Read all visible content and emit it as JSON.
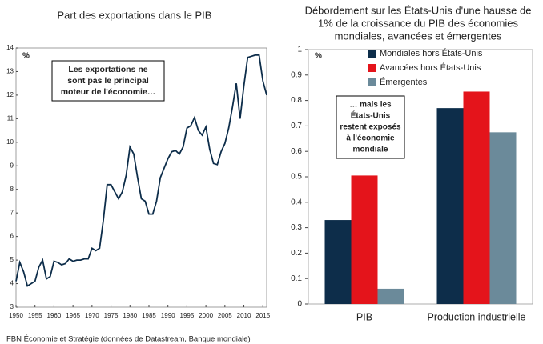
{
  "chart_data": [
    {
      "type": "line",
      "title": "Part des exportations dans le PIB",
      "y_unit": "%",
      "annotation": [
        "Les exportations ne",
        "sont pas le principal",
        "moteur de l'économie…"
      ],
      "x": [
        1950,
        1951,
        1952,
        1953,
        1954,
        1955,
        1956,
        1957,
        1958,
        1959,
        1960,
        1961,
        1962,
        1963,
        1964,
        1965,
        1966,
        1967,
        1968,
        1969,
        1970,
        1971,
        1972,
        1973,
        1974,
        1975,
        1976,
        1977,
        1978,
        1979,
        1980,
        1981,
        1982,
        1983,
        1984,
        1985,
        1986,
        1987,
        1988,
        1989,
        1990,
        1991,
        1992,
        1993,
        1994,
        1995,
        1996,
        1997,
        1998,
        1999,
        2000,
        2001,
        2002,
        2003,
        2004,
        2005,
        2006,
        2007,
        2008,
        2009,
        2010,
        2011,
        2012,
        2013,
        2014,
        2015,
        2016
      ],
      "series": [
        {
          "color": "#0d2d4a",
          "values": [
            4.1,
            4.9,
            4.5,
            3.9,
            4.0,
            4.1,
            4.7,
            5.0,
            4.2,
            4.3,
            4.95,
            4.9,
            4.8,
            4.85,
            5.05,
            4.95,
            5.0,
            5.0,
            5.05,
            5.05,
            5.5,
            5.4,
            5.5,
            6.7,
            8.2,
            8.2,
            7.9,
            7.6,
            7.9,
            8.6,
            9.8,
            9.5,
            8.5,
            7.6,
            7.5,
            6.95,
            6.95,
            7.5,
            8.5,
            8.9,
            9.3,
            9.6,
            9.65,
            9.5,
            9.8,
            10.6,
            10.7,
            11.05,
            10.5,
            10.3,
            10.65,
            9.7,
            9.1,
            9.05,
            9.6,
            9.95,
            10.6,
            11.5,
            12.5,
            11.0,
            12.4,
            13.6,
            13.65,
            13.7,
            13.7,
            12.6,
            12.0
          ]
        }
      ],
      "xlim": [
        1950,
        2016
      ],
      "xticks": [
        1950,
        1955,
        1960,
        1965,
        1970,
        1975,
        1980,
        1985,
        1990,
        1995,
        2000,
        2005,
        2010,
        2015
      ],
      "ylim": [
        3,
        14
      ],
      "yticks": [
        3,
        4,
        5,
        6,
        7,
        8,
        9,
        10,
        11,
        12,
        13,
        14
      ],
      "grid": false
    },
    {
      "type": "bar",
      "title": [
        "Débordement sur les États-Unis d'une hausse de",
        "1% de la croissance du PIB des économies",
        "mondiales, avancées et émergentes"
      ],
      "y_unit": "%",
      "annotation": [
        "… mais les",
        "États-Unis",
        "restent exposés",
        "à l'économie",
        "mondiale"
      ],
      "categories": [
        "PIB",
        "Production industrielle"
      ],
      "series": [
        {
          "name": "Mondiales hors États-Unis",
          "color": "#0d2d4a",
          "values": [
            0.33,
            0.77
          ]
        },
        {
          "name": "Avancées hors États-Unis",
          "color": "#e4141b",
          "values": [
            0.505,
            0.835
          ]
        },
        {
          "name": "Émergentes",
          "color": "#6b8a9a",
          "values": [
            0.06,
            0.675
          ]
        }
      ],
      "ylim": [
        0,
        1
      ],
      "yticks": [
        0,
        0.1,
        0.2,
        0.3,
        0.4,
        0.5,
        0.6,
        0.7,
        0.8,
        0.9,
        1
      ],
      "legend": "top",
      "grid": false
    }
  ],
  "source": "FBN Économie et Stratégie (données de Datastream, Banque mondiale)"
}
